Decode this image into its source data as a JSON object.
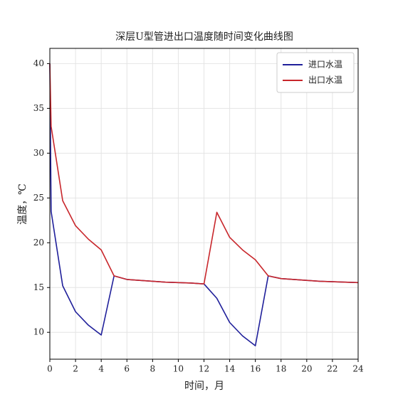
{
  "chart_data": {
    "type": "line",
    "title": "深层U型管进出口温度随时间变化曲线图",
    "xlabel": "时间，月",
    "ylabel": "温度，℃",
    "x": [
      0,
      0.1,
      1,
      2,
      3,
      4,
      5,
      6,
      7,
      8,
      9,
      10,
      11,
      12,
      13,
      14,
      15,
      16,
      17,
      18,
      19,
      20,
      21,
      22,
      23,
      24
    ],
    "series": [
      {
        "name": "进口水温",
        "color": "#1f1f9a",
        "values": [
          40,
          23.5,
          15.2,
          12.3,
          10.8,
          9.7,
          16.3,
          15.9,
          15.8,
          15.7,
          15.6,
          15.55,
          15.5,
          15.4,
          13.8,
          11.1,
          9.6,
          8.5,
          16.3,
          16.0,
          15.9,
          15.8,
          15.7,
          15.65,
          15.6,
          15.55
        ]
      },
      {
        "name": "出口水温",
        "color": "#c8262b",
        "values": [
          40,
          33,
          24.7,
          21.9,
          20.4,
          19.2,
          16.3,
          15.9,
          15.8,
          15.7,
          15.6,
          15.55,
          15.5,
          15.4,
          23.4,
          20.6,
          19.2,
          18.1,
          16.3,
          16.0,
          15.9,
          15.8,
          15.7,
          15.65,
          15.6,
          15.55
        ]
      }
    ],
    "xlim": [
      0,
      24
    ],
    "xticks": [
      0,
      2,
      4,
      6,
      8,
      10,
      12,
      14,
      16,
      18,
      20,
      22,
      24
    ],
    "ylim": [
      7,
      41.7
    ],
    "yticks": [
      10,
      15,
      20,
      25,
      30,
      35,
      40
    ],
    "grid": true,
    "legend": "upper-right"
  }
}
